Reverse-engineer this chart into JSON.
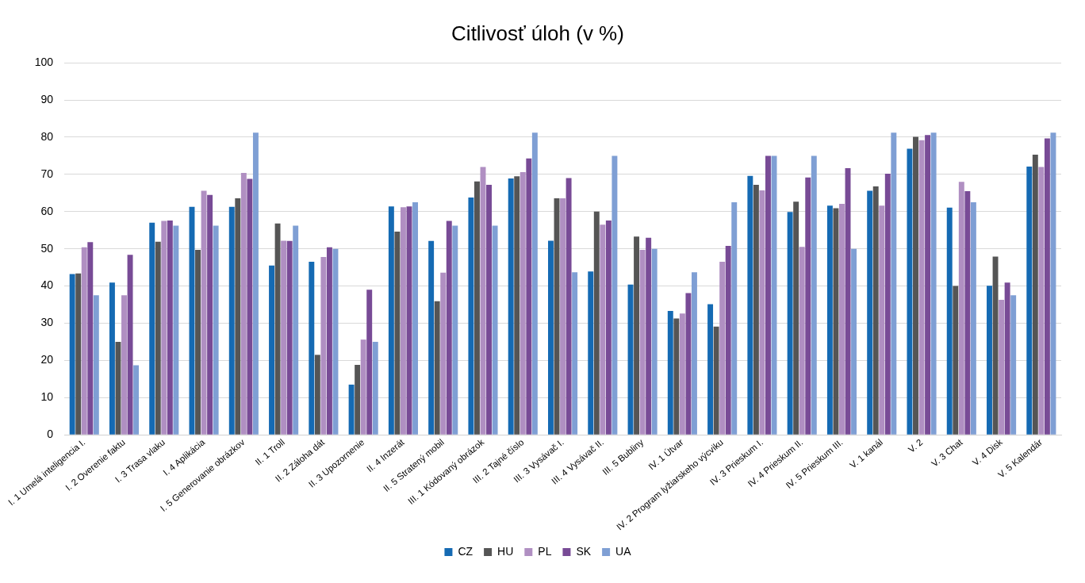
{
  "chart_data": {
    "type": "bar",
    "title": "Citlivosť úloh (v %)",
    "categories": [
      "I. 1 Umelá inteligencia I.",
      "I. 2 Overenie faktu",
      "I. 3 Trasa vlaku",
      "I. 4 Aplikácia",
      "I. 5 Generovanie obrázkov",
      "II. 1 Troll",
      "II. 2 Záloha dát",
      "II. 3 Upozornenie",
      "II. 4 Inzerát",
      "II. 5 Stratený mobil",
      "III. 1 Kódovaný obrázok",
      "III. 2 Tajné číslo",
      "III. 3 Vysávač I.",
      "III. 4 Vysávač II.",
      "III. 5 Bubliny",
      "IV. 1 Útvar",
      "IV. 2 Program lyžiarskeho výcviku",
      "IV. 3 Prieskum I.",
      "IV. 4 Prieskum II.",
      "IV. 5 Prieskum III.",
      "V. 1 kanál",
      "V. 2",
      "V. 3 Chat",
      "V. 4 Disk",
      "V. 5 Kalendár"
    ],
    "series": [
      {
        "name": "CZ",
        "color": "#156ab3",
        "values": [
          43.2,
          40.9,
          57,
          61.3,
          61.3,
          45.5,
          46.5,
          13.5,
          61.4,
          52.1,
          63.8,
          68.9,
          52.2,
          43.9,
          40.4,
          33.3,
          35.1,
          69.6,
          59.9,
          61.6,
          65.6,
          76.9,
          61.1,
          40.1,
          72.1
        ]
      },
      {
        "name": "HU",
        "color": "#555555",
        "values": [
          43.4,
          25,
          51.9,
          49.7,
          63.6,
          56.8,
          21.5,
          18.8,
          54.6,
          35.9,
          68.1,
          69.5,
          63.6,
          60,
          53.3,
          31.3,
          29.1,
          67.2,
          62.7,
          60.9,
          66.8,
          80.1,
          40,
          47.9,
          75.3
        ]
      },
      {
        "name": "PL",
        "color": "#b08fc2",
        "values": [
          50.4,
          37.5,
          57.5,
          65.6,
          70.4,
          52.2,
          47.8,
          25.6,
          61.2,
          43.6,
          72,
          70.6,
          63.6,
          56.5,
          49.7,
          32.6,
          46.5,
          65.7,
          50.5,
          62.1,
          61.6,
          79.2,
          68,
          36.3,
          72
        ]
      },
      {
        "name": "SK",
        "color": "#784b96",
        "values": [
          51.8,
          48.4,
          57.6,
          64.5,
          68.8,
          52.1,
          50.4,
          39,
          61.4,
          57.5,
          67.2,
          74.3,
          69,
          57.6,
          53,
          38.1,
          50.8,
          75,
          69.2,
          71.7,
          70.2,
          80.6,
          65.5,
          40.9,
          79.7
        ]
      },
      {
        "name": "UA",
        "color": "#7f9fd4",
        "values": [
          37.5,
          18.7,
          56.2,
          56.2,
          81.2,
          56.2,
          50,
          25,
          62.5,
          56.2,
          56.2,
          81.2,
          43.7,
          75,
          50,
          43.7,
          62.5,
          75,
          75,
          50,
          81.2,
          81.2,
          62.5,
          37.5,
          81.2
        ]
      }
    ],
    "ylim": [
      0,
      100
    ],
    "yticks": [
      0,
      10,
      20,
      30,
      40,
      50,
      60,
      70,
      80,
      90,
      100
    ],
    "grid": "y",
    "legend": "bottom"
  }
}
